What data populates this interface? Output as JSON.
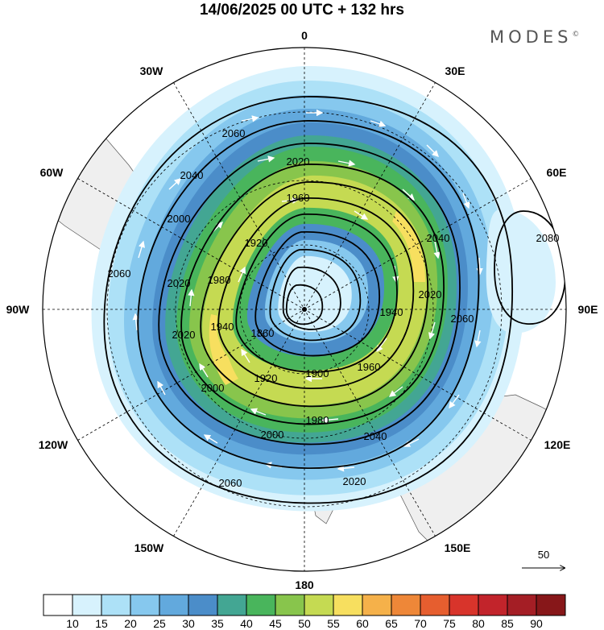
{
  "header": {
    "title": "14/06/2025  00 UTC  + 132 hrs",
    "brand": "MODES",
    "brand_mark": "©"
  },
  "map": {
    "projection": "polar-stereographic",
    "hemisphere": "south",
    "longitude_labels": [
      "0",
      "30E",
      "60E",
      "90E",
      "120E",
      "150E",
      "180",
      "150W",
      "120W",
      "90W",
      "60W",
      "30W"
    ],
    "contour_labels": [
      "2060",
      "2040",
      "2020",
      "1960",
      "1920",
      "1860",
      "1900",
      "1920",
      "1960",
      "1980",
      "2000",
      "2020",
      "2040",
      "2060",
      "2080",
      "2040",
      "2020",
      "2060",
      "1940",
      "1940",
      "1980",
      "2000",
      "2020",
      "2060",
      "2000",
      "2020"
    ],
    "vector_reference": {
      "value": "50"
    },
    "colors": {
      "land": "#efefef",
      "coast": "#444444",
      "contour": "#000000",
      "vector": "#ffffff",
      "grid": "#000000"
    }
  },
  "colorbar": {
    "labels": [
      "10",
      "15",
      "20",
      "25",
      "30",
      "35",
      "40",
      "45",
      "50",
      "55",
      "60",
      "65",
      "70",
      "75",
      "80",
      "85",
      "90"
    ],
    "colors": [
      "#ffffff",
      "#d7f2fd",
      "#ade1f7",
      "#86c8ee",
      "#62a9dd",
      "#4b8dc9",
      "#43a693",
      "#49b55c",
      "#88c54c",
      "#c5da52",
      "#f7df5f",
      "#f5b14a",
      "#ee8738",
      "#e65e2f",
      "#d8342b",
      "#c2242b",
      "#a41e25",
      "#871719"
    ]
  }
}
